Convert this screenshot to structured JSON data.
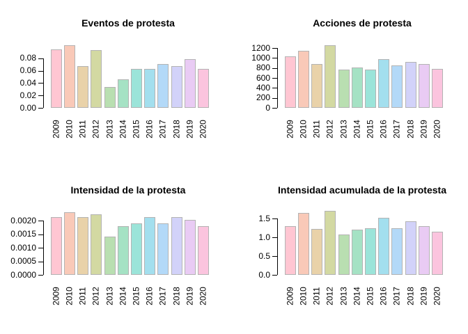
{
  "figure": {
    "background": "#ffffff",
    "text_color": "#000000",
    "axis_color": "#000000",
    "bar_border_color": "#b3b3b3",
    "palette": [
      "#ffc6d2",
      "#f9c9b8",
      "#e9d2a9",
      "#d3d9a2",
      "#b9dfb1",
      "#a5e2c4",
      "#9be4d9",
      "#a3dfee",
      "#b3d9f8",
      "#d2d2f9",
      "#e9cbf4",
      "#fbc4de"
    ]
  },
  "chart_data": [
    {
      "type": "bar",
      "title": "Eventos de protesta",
      "categories": [
        "2009",
        "2010",
        "2011",
        "2012",
        "2013",
        "2014",
        "2015",
        "2016",
        "2017",
        "2018",
        "2019",
        "2020"
      ],
      "values": [
        0.095,
        0.101,
        0.068,
        0.093,
        0.034,
        0.046,
        0.063,
        0.063,
        0.071,
        0.068,
        0.079,
        0.063
      ],
      "ytick_labels": [
        "0.00",
        "0.02",
        "0.04",
        "0.06",
        "0.08"
      ],
      "ytick_values": [
        0,
        0.02,
        0.04,
        0.06,
        0.08
      ],
      "ylim": [
        0,
        0.107
      ],
      "xlabel": "",
      "ylabel": "",
      "grid": false,
      "legend": "none"
    },
    {
      "type": "bar",
      "title": "Acciones de protesta",
      "categories": [
        "2009",
        "2010",
        "2011",
        "2012",
        "2013",
        "2014",
        "2015",
        "2016",
        "2017",
        "2018",
        "2019",
        "2020"
      ],
      "values": [
        1030,
        1140,
        880,
        1255,
        765,
        805,
        765,
        975,
        855,
        915,
        880,
        780
      ],
      "ytick_labels": [
        "0",
        "200",
        "400",
        "600",
        "800",
        "1000",
        "1200"
      ],
      "ytick_values": [
        0,
        200,
        400,
        600,
        800,
        1000,
        1200
      ],
      "ylim": [
        0,
        1326
      ],
      "xlabel": "",
      "ylabel": "",
      "grid": false,
      "legend": "none"
    },
    {
      "type": "bar",
      "title": "Intensidad de la protesta",
      "categories": [
        "2009",
        "2010",
        "2011",
        "2012",
        "2013",
        "2014",
        "2015",
        "2016",
        "2017",
        "2018",
        "2019",
        "2020"
      ],
      "values": [
        0.00213,
        0.00233,
        0.00213,
        0.00224,
        0.00141,
        0.00181,
        0.0019,
        0.00213,
        0.0019,
        0.00213,
        0.00203,
        0.00181
      ],
      "ytick_labels": [
        "0.0000",
        "0.0005",
        "0.0010",
        "0.0015",
        "0.0020"
      ],
      "ytick_values": [
        0,
        0.0005,
        0.001,
        0.0015,
        0.002
      ],
      "ylim": [
        0,
        0.00245
      ],
      "xlabel": "",
      "ylabel": "",
      "grid": false,
      "legend": "none"
    },
    {
      "type": "bar",
      "title": "Intensidad acumulada de la protesta",
      "categories": [
        "2009",
        "2010",
        "2011",
        "2012",
        "2013",
        "2014",
        "2015",
        "2016",
        "2017",
        "2018",
        "2019",
        "2020"
      ],
      "values": [
        1.29,
        1.64,
        1.23,
        1.7,
        1.07,
        1.21,
        1.25,
        1.51,
        1.25,
        1.42,
        1.3,
        1.15
      ],
      "ytick_labels": [
        "0.0",
        "0.5",
        "1.0",
        "1.5"
      ],
      "ytick_values": [
        0,
        0.5,
        1.0,
        1.5
      ],
      "ylim": [
        0,
        1.76
      ],
      "xlabel": "",
      "ylabel": "",
      "grid": false,
      "legend": "none"
    }
  ]
}
